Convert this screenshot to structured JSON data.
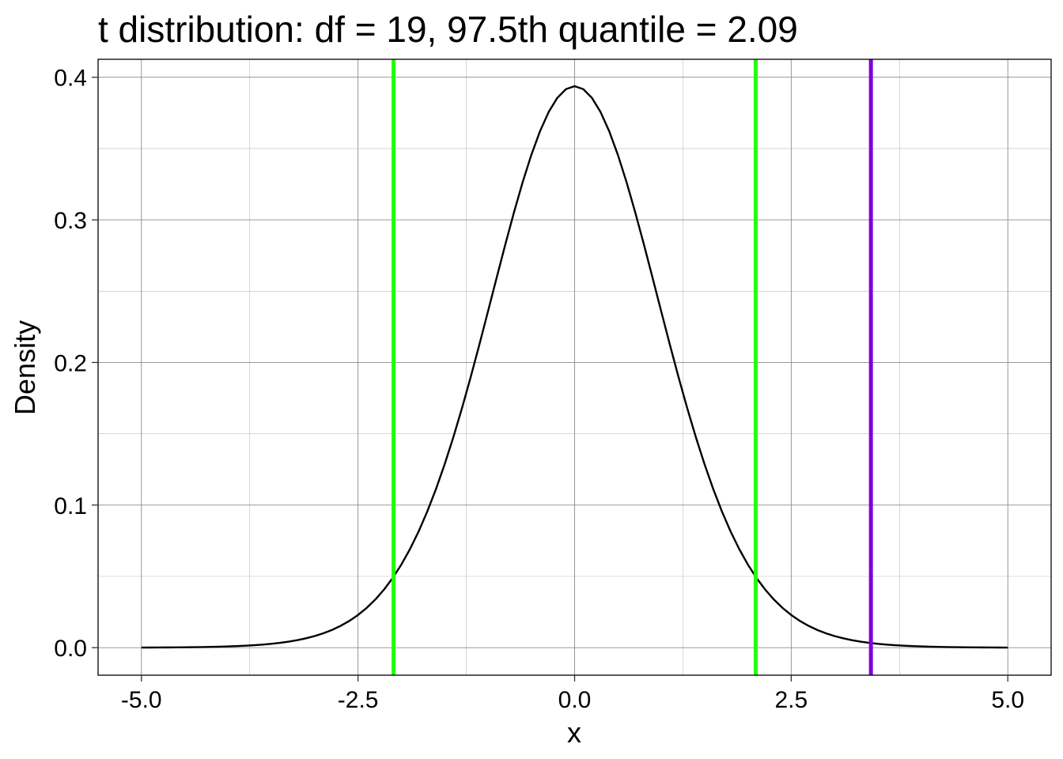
{
  "chart_data": {
    "type": "line",
    "title": "t distribution: df = 19, 97.5th quantile = 2.09",
    "xlabel": "x",
    "ylabel": "Density",
    "df": 19,
    "x_range": [
      -5,
      5
    ],
    "xlim": [
      -5.5,
      5.5
    ],
    "ylim": [
      -0.0193,
      0.4126
    ],
    "x_ticks": [
      {
        "value": -5.0,
        "label": "-5.0"
      },
      {
        "value": -2.5,
        "label": "-2.5"
      },
      {
        "value": 0.0,
        "label": "0.0"
      },
      {
        "value": 2.5,
        "label": "2.5"
      },
      {
        "value": 5.0,
        "label": "5.0"
      }
    ],
    "y_ticks": [
      {
        "value": 0.0,
        "label": "0.0"
      },
      {
        "value": 0.1,
        "label": "0.1"
      },
      {
        "value": 0.2,
        "label": "0.2"
      },
      {
        "value": 0.3,
        "label": "0.3"
      },
      {
        "value": 0.4,
        "label": "0.4"
      }
    ],
    "x_minor_ticks": [
      -3.75,
      -1.25,
      1.25,
      3.75
    ],
    "y_minor_ticks": [
      0.05,
      0.15,
      0.25,
      0.35
    ],
    "grid": true,
    "series": [
      {
        "color": "#000000"
      }
    ],
    "vlines": [
      {
        "x": -2.09,
        "color": "#22ff00"
      },
      {
        "x": 2.09,
        "color": "#22ff00"
      },
      {
        "x": 3.42,
        "color": "#7d00e0"
      }
    ],
    "colors": {
      "grid": "#bdbdbd",
      "panel_border": "#000000",
      "curve": "#000000"
    }
  }
}
